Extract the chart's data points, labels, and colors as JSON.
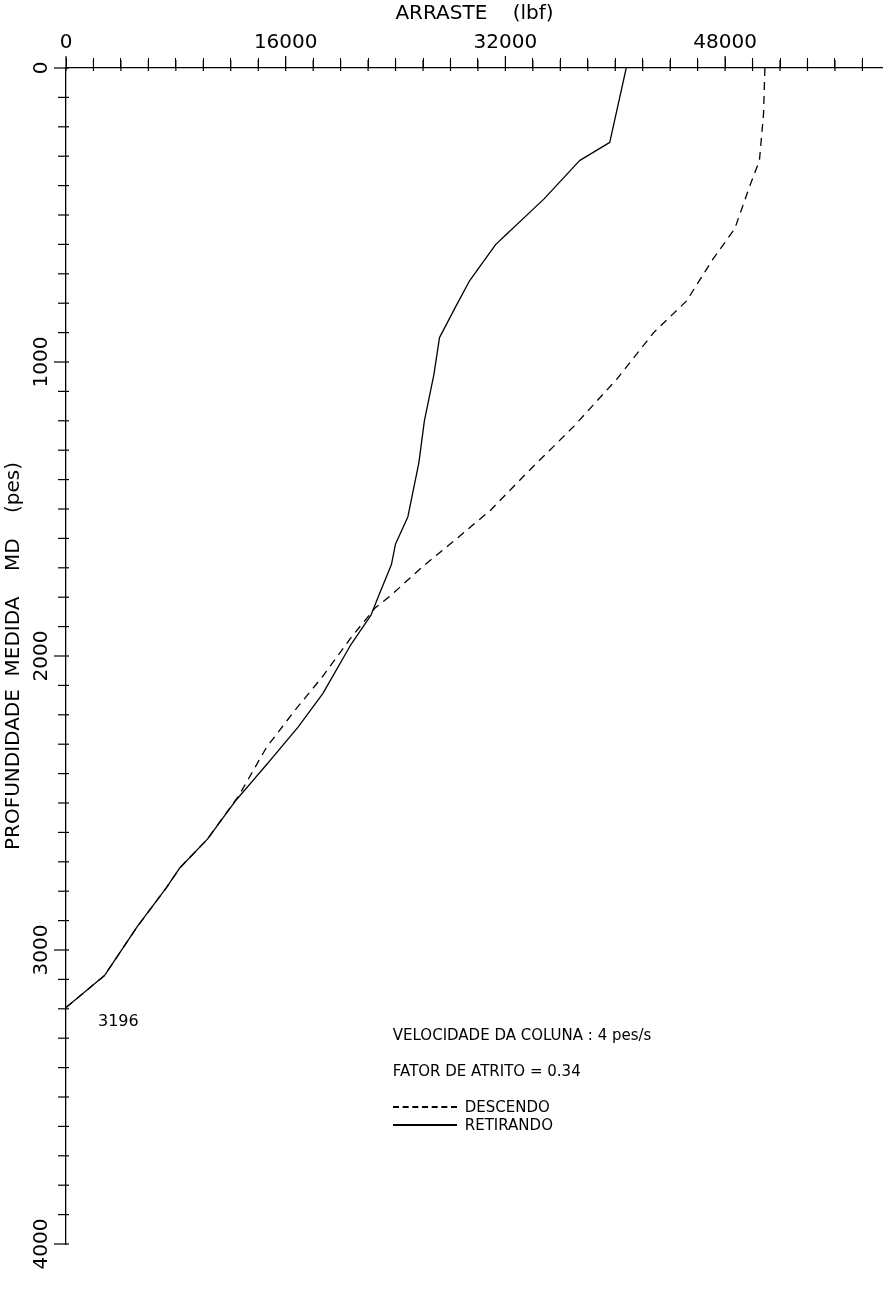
{
  "chart_data": {
    "type": "line",
    "xlabel": "ARRASTE    (lbf)",
    "ylabel": "PROFUNDIDADE  MEDIDA    MD    (pes)",
    "xlim": [
      0,
      59500
    ],
    "ylim": [
      4000,
      0
    ],
    "xticks": [
      0,
      {
        "value": 2000,
        "label": null
      },
      {
        "value": 4000,
        "label": null
      },
      {
        "value": 6000,
        "label": null
      },
      {
        "value": 8000,
        "label": null
      },
      {
        "value": 10000,
        "label": null
      },
      {
        "value": 12000,
        "label": null
      },
      {
        "value": 14000,
        "label": null
      },
      16000,
      {
        "value": 18000,
        "label": null
      },
      {
        "value": 20000,
        "label": null
      },
      {
        "value": 22000,
        "label": null
      },
      {
        "value": 24000,
        "label": null
      },
      {
        "value": 26000,
        "label": null
      },
      {
        "value": 28000,
        "label": null
      },
      {
        "value": 30000,
        "label": null
      },
      32000,
      {
        "value": 34000,
        "label": null
      },
      {
        "value": 36000,
        "label": null
      },
      {
        "value": 38000,
        "label": null
      },
      {
        "value": 40000,
        "label": null
      },
      {
        "value": 42000,
        "label": null
      },
      {
        "value": 44000,
        "label": null
      },
      {
        "value": 46000,
        "label": null
      },
      48000,
      {
        "value": 50000,
        "label": null
      },
      {
        "value": 52000,
        "label": null
      },
      {
        "value": 54000,
        "label": null
      },
      {
        "value": 56000,
        "label": null
      },
      {
        "value": 58000,
        "label": null
      }
    ],
    "yticks": [
      0,
      {
        "value": 100,
        "label": null
      },
      {
        "value": 200,
        "label": null
      },
      {
        "value": 300,
        "label": null
      },
      {
        "value": 400,
        "label": null
      },
      {
        "value": 500,
        "label": null
      },
      {
        "value": 600,
        "label": null
      },
      {
        "value": 700,
        "label": null
      },
      {
        "value": 800,
        "label": null
      },
      {
        "value": 900,
        "label": null
      },
      1000,
      {
        "value": 1100,
        "label": null
      },
      {
        "value": 1200,
        "label": null
      },
      {
        "value": 1300,
        "label": null
      },
      {
        "value": 1400,
        "label": null
      },
      {
        "value": 1500,
        "label": null
      },
      {
        "value": 1600,
        "label": null
      },
      {
        "value": 1700,
        "label": null
      },
      {
        "value": 1800,
        "label": null
      },
      {
        "value": 1900,
        "label": null
      },
      2000,
      {
        "value": 2100,
        "label": null
      },
      {
        "value": 2200,
        "label": null
      },
      {
        "value": 2300,
        "label": null
      },
      {
        "value": 2400,
        "label": null
      },
      {
        "value": 2500,
        "label": null
      },
      {
        "value": 2600,
        "label": null
      },
      {
        "value": 2700,
        "label": null
      },
      {
        "value": 2800,
        "label": null
      },
      {
        "value": 2900,
        "label": null
      },
      3000,
      {
        "value": 3100,
        "label": null
      },
      {
        "value": 3200,
        "label": null
      },
      {
        "value": 3300,
        "label": null
      },
      {
        "value": 3400,
        "label": null
      },
      {
        "value": 3500,
        "label": null
      },
      {
        "value": 3600,
        "label": null
      },
      {
        "value": 3700,
        "label": null
      },
      {
        "value": 3800,
        "label": null
      },
      {
        "value": 3900,
        "label": null
      },
      4000
    ],
    "grid": false,
    "legend": "bottom",
    "marker": "none",
    "annotations": [
      {
        "text": "3196",
        "x": 0,
        "y": 3196
      },
      "VELOCIDADE DA COLUNA : 4 pes/s",
      "FATOR DE ATRITO  = 0.34"
    ],
    "series": [
      {
        "name": "DESCENDO",
        "color": "#000000",
        "line_style": "dashed",
        "x": [
          50900,
          50800,
          50500,
          49800,
          48700,
          47100,
          45200,
          42800,
          40100,
          37000,
          33500,
          30900,
          28600,
          26000,
          23700,
          22500,
          20700,
          18700,
          16700,
          14600,
          12600,
          10300,
          8300,
          7300,
          5200,
          2800,
          0
        ],
        "values": [
          0,
          156,
          315,
          401,
          547,
          651,
          792,
          900,
          1059,
          1218,
          1380,
          1505,
          1595,
          1695,
          1792,
          1837,
          1941,
          2069,
          2183,
          2311,
          2474,
          2623,
          2720,
          2789,
          2920,
          3087,
          3196
        ]
      },
      {
        "name": "RETIRANDO",
        "color": "#000000",
        "line_style": "solid",
        "x": [
          40800,
          39600,
          37400,
          34800,
          31300,
          29400,
          28400,
          27200,
          26800,
          26100,
          25700,
          24900,
          24000,
          23700,
          22800,
          22200,
          20700,
          18700,
          16900,
          14600,
          12300,
          10300,
          8300,
          7300,
          5200,
          2800,
          0
        ],
        "values": [
          0,
          253,
          315,
          446,
          600,
          723,
          810,
          917,
          1041,
          1200,
          1342,
          1526,
          1619,
          1689,
          1792,
          1862,
          1965,
          2128,
          2242,
          2370,
          2495,
          2623,
          2720,
          2789,
          2920,
          3087,
          3196
        ]
      }
    ]
  }
}
